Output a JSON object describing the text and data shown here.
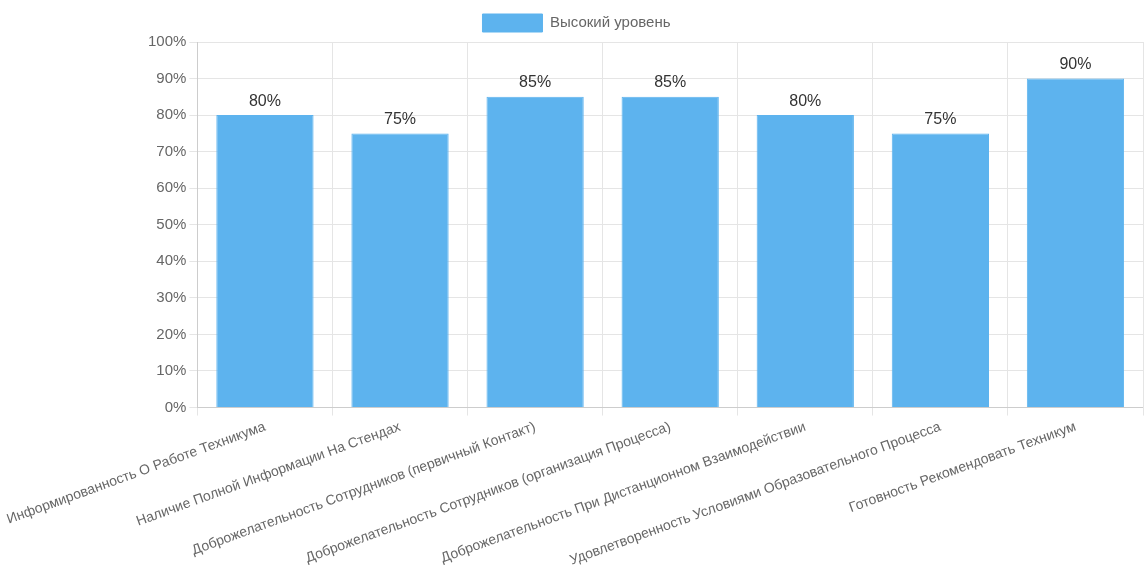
{
  "chart_data": {
    "type": "bar",
    "categories": [
      "Информированность О Работе Техникума",
      "Наличие Полной Информации На Стендах",
      "Доброжелательность Сотрудников (первичный Контакт)",
      "Доброжелательность Сотрудников (организация Процесса)",
      "Доброжелательность При Дистанционном Взаимодействии",
      "Удовлетворенность Условиями Образовательного Процесса",
      "Готовность Рекомендовать Техникум"
    ],
    "series": [
      {
        "name": "Высокий уровень",
        "color": "#5db3ee",
        "values": [
          80,
          75,
          85,
          85,
          80,
          75,
          90
        ],
        "value_labels": [
          "80%",
          "75%",
          "85%",
          "85%",
          "80%",
          "75%",
          "90%"
        ]
      }
    ],
    "ylim": [
      0,
      100
    ],
    "yticks": [
      {
        "value": 0,
        "label": "0%"
      },
      {
        "value": 10,
        "label": "10%"
      },
      {
        "value": 20,
        "label": "20%"
      },
      {
        "value": 30,
        "label": "30%"
      },
      {
        "value": 40,
        "label": "40%"
      },
      {
        "value": 50,
        "label": "50%"
      },
      {
        "value": 60,
        "label": "60%"
      },
      {
        "value": 70,
        "label": "70%"
      },
      {
        "value": 80,
        "label": "80%"
      },
      {
        "value": 90,
        "label": "90%"
      },
      {
        "value": 100,
        "label": "100%"
      }
    ],
    "grid": true,
    "legend": "top"
  }
}
